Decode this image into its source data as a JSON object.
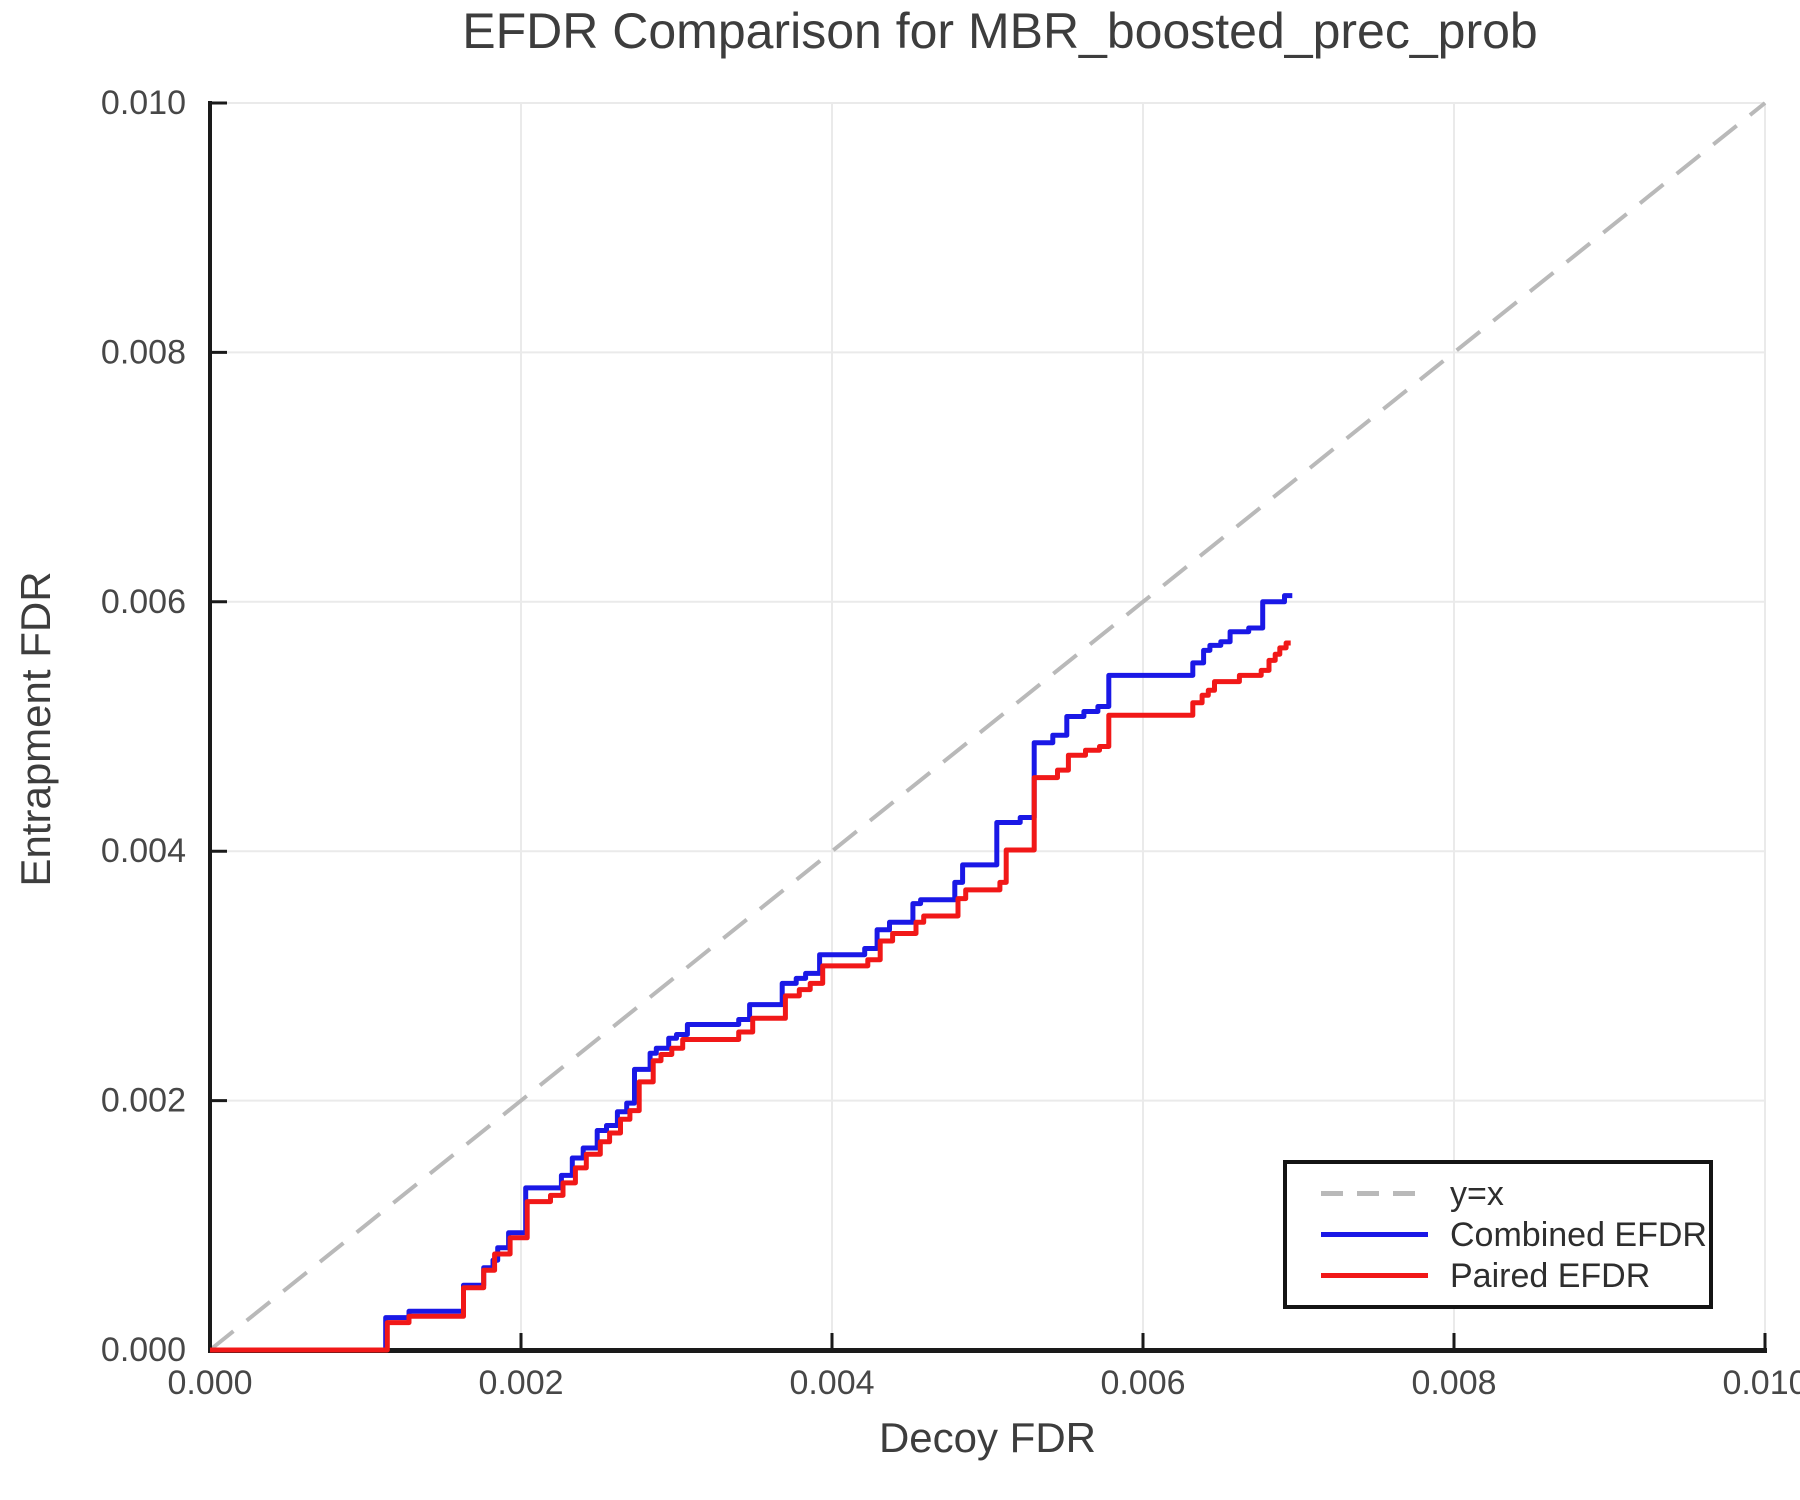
{
  "axes": {
    "x": {
      "label": "Decoy FDR",
      "tick_values": [
        0,
        0.002,
        0.004,
        0.006,
        0.008,
        0.01
      ],
      "tick_labels": [
        "0.000",
        "0.002",
        "0.004",
        "0.006",
        "0.008",
        "0.010"
      ]
    },
    "y": {
      "label": "Entrapment FDR",
      "tick_values": [
        0,
        0.002,
        0.004,
        0.006,
        0.008,
        0.01
      ],
      "tick_labels": [
        "0.000",
        "0.002",
        "0.004",
        "0.006",
        "0.008",
        "0.010"
      ]
    }
  },
  "legend": {
    "items": [
      {
        "label": "y=x",
        "color": "#b9b9b9",
        "style": "dashed"
      },
      {
        "label": "Combined EFDR",
        "color": "#1a18e6",
        "style": "solid"
      },
      {
        "label": "Paired EFDR",
        "color": "#f11818",
        "style": "solid"
      }
    ]
  },
  "colors": {
    "grid": "#eaeaea",
    "spine": "#1a1a1a",
    "tick_text": "#474747",
    "title_text": "#3d3d3d",
    "identity": "#b9b9b9",
    "combined": "#1a18e6",
    "paired": "#f11818"
  },
  "chart_data": {
    "type": "line",
    "title": "EFDR Comparison for MBR_boosted_prec_prob",
    "xlabel": "Decoy FDR",
    "ylabel": "Entrapment FDR",
    "xlim": [
      0,
      0.01
    ],
    "ylim": [
      0,
      0.01
    ],
    "grid": true,
    "legend_position": "lower right",
    "series": [
      {
        "name": "y=x",
        "color": "#b9b9b9",
        "style": "dashed",
        "points": [
          [
            0,
            0
          ],
          [
            0.01,
            0.01
          ]
        ]
      },
      {
        "name": "Combined EFDR",
        "color": "#1a18e6",
        "style": "solid",
        "points": [
          [
            0,
            0
          ],
          [
            0.00113,
            0
          ],
          [
            0.00113,
            0.00026
          ],
          [
            0.00128,
            0.00026
          ],
          [
            0.00128,
            0.00031
          ],
          [
            0.00163,
            0.00031
          ],
          [
            0.00163,
            0.00052
          ],
          [
            0.00176,
            0.00052
          ],
          [
            0.00176,
            0.00066
          ],
          [
            0.00182,
            0.00066
          ],
          [
            0.00182,
            0.00072
          ],
          [
            0.00185,
            0.00072
          ],
          [
            0.00185,
            0.00082
          ],
          [
            0.00192,
            0.00082
          ],
          [
            0.00192,
            0.00094
          ],
          [
            0.00203,
            0.00094
          ],
          [
            0.00203,
            0.0013
          ],
          [
            0.00226,
            0.0013
          ],
          [
            0.00226,
            0.0014
          ],
          [
            0.00233,
            0.0014
          ],
          [
            0.00233,
            0.00154
          ],
          [
            0.0024,
            0.00154
          ],
          [
            0.0024,
            0.00162
          ],
          [
            0.00249,
            0.00162
          ],
          [
            0.00249,
            0.00176
          ],
          [
            0.00255,
            0.00176
          ],
          [
            0.00255,
            0.0018
          ],
          [
            0.00262,
            0.0018
          ],
          [
            0.00262,
            0.00191
          ],
          [
            0.00268,
            0.00191
          ],
          [
            0.00268,
            0.00198
          ],
          [
            0.00273,
            0.00198
          ],
          [
            0.00273,
            0.00225
          ],
          [
            0.00283,
            0.00225
          ],
          [
            0.00283,
            0.00238
          ],
          [
            0.00287,
            0.00238
          ],
          [
            0.00287,
            0.00242
          ],
          [
            0.00295,
            0.00242
          ],
          [
            0.00295,
            0.0025
          ],
          [
            0.003,
            0.0025
          ],
          [
            0.003,
            0.00253
          ],
          [
            0.00307,
            0.00253
          ],
          [
            0.00307,
            0.00261
          ],
          [
            0.0034,
            0.00261
          ],
          [
            0.0034,
            0.00265
          ],
          [
            0.00347,
            0.00265
          ],
          [
            0.00347,
            0.00277
          ],
          [
            0.00368,
            0.00277
          ],
          [
            0.00368,
            0.00294
          ],
          [
            0.00377,
            0.00294
          ],
          [
            0.00377,
            0.00298
          ],
          [
            0.00383,
            0.00298
          ],
          [
            0.00383,
            0.00302
          ],
          [
            0.00392,
            0.00302
          ],
          [
            0.00392,
            0.00317
          ],
          [
            0.00421,
            0.00317
          ],
          [
            0.00421,
            0.00322
          ],
          [
            0.00429,
            0.00322
          ],
          [
            0.00429,
            0.00337
          ],
          [
            0.00437,
            0.00337
          ],
          [
            0.00437,
            0.00343
          ],
          [
            0.00452,
            0.00343
          ],
          [
            0.00452,
            0.00358
          ],
          [
            0.00457,
            0.00358
          ],
          [
            0.00457,
            0.00361
          ],
          [
            0.00479,
            0.00361
          ],
          [
            0.00479,
            0.00375
          ],
          [
            0.00484,
            0.00375
          ],
          [
            0.00484,
            0.00389
          ],
          [
            0.00506,
            0.00389
          ],
          [
            0.00506,
            0.00423
          ],
          [
            0.00521,
            0.00423
          ],
          [
            0.00521,
            0.00427
          ],
          [
            0.0053,
            0.00427
          ],
          [
            0.0053,
            0.00487
          ],
          [
            0.00542,
            0.00487
          ],
          [
            0.00542,
            0.00493
          ],
          [
            0.00551,
            0.00493
          ],
          [
            0.00551,
            0.00508
          ],
          [
            0.00562,
            0.00508
          ],
          [
            0.00562,
            0.00512
          ],
          [
            0.00571,
            0.00512
          ],
          [
            0.00571,
            0.00516
          ],
          [
            0.00578,
            0.00516
          ],
          [
            0.00578,
            0.00541
          ],
          [
            0.00632,
            0.00541
          ],
          [
            0.00632,
            0.00551
          ],
          [
            0.00639,
            0.00551
          ],
          [
            0.00639,
            0.00561
          ],
          [
            0.00643,
            0.00561
          ],
          [
            0.00643,
            0.00565
          ],
          [
            0.0065,
            0.00565
          ],
          [
            0.0065,
            0.00568
          ],
          [
            0.00656,
            0.00568
          ],
          [
            0.00656,
            0.00576
          ],
          [
            0.00668,
            0.00576
          ],
          [
            0.00668,
            0.00579
          ],
          [
            0.00677,
            0.00579
          ],
          [
            0.00677,
            0.006
          ],
          [
            0.00686,
            0.006
          ],
          [
            0.00686,
            0.006
          ],
          [
            0.00691,
            0.006
          ],
          [
            0.00691,
            0.00605
          ],
          [
            0.00696,
            0.00605
          ]
        ]
      },
      {
        "name": "Paired EFDR",
        "color": "#f11818",
        "style": "solid",
        "points": [
          [
            0,
            0
          ],
          [
            0.00114,
            0
          ],
          [
            0.00114,
            0.00022
          ],
          [
            0.00128,
            0.00022
          ],
          [
            0.00128,
            0.00027
          ],
          [
            0.00163,
            0.00027
          ],
          [
            0.00163,
            0.0005
          ],
          [
            0.00176,
            0.0005
          ],
          [
            0.00176,
            0.00064
          ],
          [
            0.00183,
            0.00064
          ],
          [
            0.00183,
            0.00077
          ],
          [
            0.00193,
            0.00077
          ],
          [
            0.00193,
            0.0009
          ],
          [
            0.00204,
            0.0009
          ],
          [
            0.00204,
            0.00119
          ],
          [
            0.00219,
            0.00119
          ],
          [
            0.00219,
            0.00124
          ],
          [
            0.00227,
            0.00124
          ],
          [
            0.00227,
            0.00134
          ],
          [
            0.00235,
            0.00134
          ],
          [
            0.00235,
            0.00146
          ],
          [
            0.00242,
            0.00146
          ],
          [
            0.00242,
            0.00157
          ],
          [
            0.00251,
            0.00157
          ],
          [
            0.00251,
            0.00167
          ],
          [
            0.00257,
            0.00167
          ],
          [
            0.00257,
            0.00174
          ],
          [
            0.00264,
            0.00174
          ],
          [
            0.00264,
            0.00185
          ],
          [
            0.0027,
            0.00185
          ],
          [
            0.0027,
            0.00192
          ],
          [
            0.00276,
            0.00192
          ],
          [
            0.00276,
            0.00215
          ],
          [
            0.00285,
            0.00215
          ],
          [
            0.00285,
            0.00232
          ],
          [
            0.0029,
            0.00232
          ],
          [
            0.0029,
            0.00237
          ],
          [
            0.00297,
            0.00237
          ],
          [
            0.00297,
            0.00242
          ],
          [
            0.00304,
            0.00242
          ],
          [
            0.00304,
            0.00249
          ],
          [
            0.0034,
            0.00249
          ],
          [
            0.0034,
            0.00255
          ],
          [
            0.00349,
            0.00255
          ],
          [
            0.00349,
            0.00266
          ],
          [
            0.0037,
            0.00266
          ],
          [
            0.0037,
            0.00284
          ],
          [
            0.00379,
            0.00284
          ],
          [
            0.00379,
            0.00289
          ],
          [
            0.00386,
            0.00289
          ],
          [
            0.00386,
            0.00294
          ],
          [
            0.00394,
            0.00294
          ],
          [
            0.00394,
            0.00308
          ],
          [
            0.00423,
            0.00308
          ],
          [
            0.00423,
            0.00313
          ],
          [
            0.00431,
            0.00313
          ],
          [
            0.00431,
            0.00328
          ],
          [
            0.00439,
            0.00328
          ],
          [
            0.00439,
            0.00334
          ],
          [
            0.00454,
            0.00334
          ],
          [
            0.00454,
            0.00343
          ],
          [
            0.00459,
            0.00343
          ],
          [
            0.00459,
            0.00348
          ],
          [
            0.00481,
            0.00348
          ],
          [
            0.00481,
            0.00362
          ],
          [
            0.00486,
            0.00362
          ],
          [
            0.00486,
            0.00369
          ],
          [
            0.00508,
            0.00369
          ],
          [
            0.00508,
            0.00375
          ],
          [
            0.00512,
            0.00375
          ],
          [
            0.00512,
            0.00401
          ],
          [
            0.0053,
            0.00401
          ],
          [
            0.0053,
            0.00459
          ],
          [
            0.00545,
            0.00459
          ],
          [
            0.00545,
            0.00465
          ],
          [
            0.00552,
            0.00465
          ],
          [
            0.00552,
            0.00477
          ],
          [
            0.00563,
            0.00477
          ],
          [
            0.00563,
            0.00481
          ],
          [
            0.00572,
            0.00481
          ],
          [
            0.00572,
            0.00484
          ],
          [
            0.00578,
            0.00484
          ],
          [
            0.00578,
            0.00509
          ],
          [
            0.00632,
            0.00509
          ],
          [
            0.00632,
            0.00519
          ],
          [
            0.00638,
            0.00519
          ],
          [
            0.00638,
            0.00525
          ],
          [
            0.00642,
            0.00525
          ],
          [
            0.00642,
            0.00529
          ],
          [
            0.00646,
            0.00529
          ],
          [
            0.00646,
            0.00536
          ],
          [
            0.00662,
            0.00536
          ],
          [
            0.00662,
            0.00541
          ],
          [
            0.00676,
            0.00541
          ],
          [
            0.00676,
            0.00545
          ],
          [
            0.00681,
            0.00545
          ],
          [
            0.00681,
            0.00553
          ],
          [
            0.00685,
            0.00553
          ],
          [
            0.00685,
            0.00558
          ],
          [
            0.00688,
            0.00558
          ],
          [
            0.00688,
            0.00563
          ],
          [
            0.00692,
            0.00563
          ],
          [
            0.00692,
            0.00567
          ],
          [
            0.00695,
            0.00567
          ]
        ]
      }
    ]
  }
}
